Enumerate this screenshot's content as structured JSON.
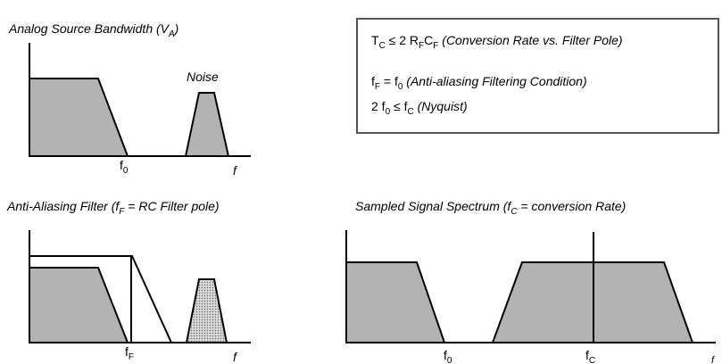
{
  "panels": {
    "analog": {
      "title_main": "Analog Source Bandwidth (V",
      "title_sub": "A",
      "title_end": ")",
      "noise_label": "Noise",
      "f0_main": "f",
      "f0_sub": "0",
      "f_label": "f"
    },
    "filter": {
      "title_main": "Anti-Aliasing Filter (f",
      "title_sub": "F",
      "title_end": " = RC Filter pole)",
      "fF_main": "f",
      "fF_sub": "F",
      "f_label": "f"
    },
    "sampled": {
      "title_main": "Sampled Signal Spectrum (f",
      "title_sub": "C",
      "title_end": " = conversion Rate)",
      "f0_main": "f",
      "f0_sub": "0",
      "fC_main": "f",
      "fC_sub": "C",
      "f_label": "f"
    }
  },
  "equations": {
    "line1": {
      "t": "T",
      "t_sub": "C",
      "rel": " ≤ 2 R",
      "r_sub": "F",
      "c": "C",
      "c_sub": "F",
      "note": " (Conversion Rate vs. Filter Pole)"
    },
    "line2": {
      "f": "f",
      "f_sub": "F",
      "eq": " = f",
      "f0_sub": "0",
      "note": " (Anti-aliasing Filtering Condition)"
    },
    "line3": {
      "lead": "2 f",
      "f0_sub": "0",
      "rel": " ≤ f",
      "fc_sub": "C",
      "note": " (Nyquist)"
    }
  },
  "colors": {
    "fill": "#b3b3b3",
    "box_border": "#555555"
  }
}
